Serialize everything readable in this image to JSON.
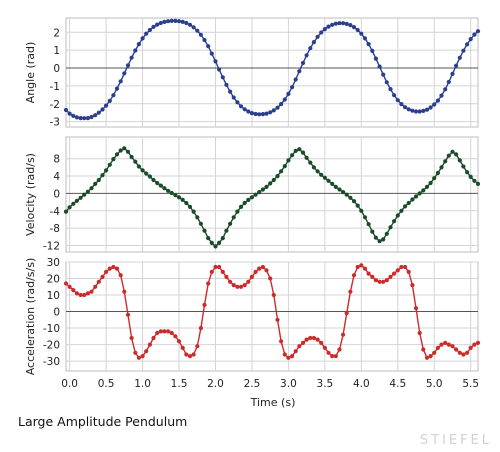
{
  "caption": "Large Amplitude Pendulum",
  "watermark": "STIEFEL",
  "chart_data": {
    "type": "line",
    "title": "",
    "xlabel": "Time (s)",
    "xlim": [
      -0.05,
      5.6
    ],
    "xticks": [
      0.0,
      0.5,
      1.0,
      1.5,
      2.0,
      2.5,
      3.0,
      3.5,
      4.0,
      4.5,
      5.0,
      5.5
    ],
    "grid": true,
    "markers": true,
    "panels": [
      {
        "id": "angle",
        "ylabel": "Angle (rad)",
        "ylim": [
          -3.3,
          2.8
        ],
        "yticks": [
          2,
          1,
          0,
          -1,
          -2,
          -3
        ],
        "color": "#2b3f8f",
        "series": {
          "x": [
            -0.05,
            0.0,
            0.05,
            0.1,
            0.15,
            0.2,
            0.25,
            0.3,
            0.35,
            0.4,
            0.45,
            0.5,
            0.55,
            0.6,
            0.65,
            0.7,
            0.75,
            0.8,
            0.85,
            0.9,
            0.95,
            1.0,
            1.05,
            1.1,
            1.15,
            1.2,
            1.25,
            1.3,
            1.35,
            1.4,
            1.45,
            1.5,
            1.55,
            1.6,
            1.65,
            1.7,
            1.75,
            1.8,
            1.85,
            1.9,
            1.95,
            2.0,
            2.05,
            2.1,
            2.15,
            2.2,
            2.25,
            2.3,
            2.35,
            2.4,
            2.45,
            2.5,
            2.55,
            2.6,
            2.65,
            2.7,
            2.75,
            2.8,
            2.85,
            2.9,
            2.95,
            3.0,
            3.05,
            3.1,
            3.15,
            3.2,
            3.25,
            3.3,
            3.35,
            3.4,
            3.45,
            3.5,
            3.55,
            3.6,
            3.65,
            3.7,
            3.75,
            3.8,
            3.85,
            3.9,
            3.95,
            4.0,
            4.05,
            4.1,
            4.15,
            4.2,
            4.25,
            4.3,
            4.35,
            4.4,
            4.45,
            4.5,
            4.55,
            4.6,
            4.65,
            4.7,
            4.75,
            4.8,
            4.85,
            4.9,
            4.95,
            5.0,
            5.05,
            5.1,
            5.15,
            5.2,
            5.25,
            5.3,
            5.35,
            5.4,
            5.45,
            5.5,
            5.55,
            5.6
          ],
          "y": [
            -2.35,
            -2.55,
            -2.68,
            -2.76,
            -2.8,
            -2.81,
            -2.8,
            -2.74,
            -2.64,
            -2.5,
            -2.32,
            -2.1,
            -1.84,
            -1.52,
            -1.15,
            -0.74,
            -0.3,
            0.15,
            0.58,
            0.98,
            1.34,
            1.66,
            1.92,
            2.13,
            2.3,
            2.43,
            2.52,
            2.58,
            2.62,
            2.64,
            2.64,
            2.62,
            2.58,
            2.52,
            2.42,
            2.28,
            2.09,
            1.86,
            1.57,
            1.22,
            0.81,
            0.37,
            -0.08,
            -0.52,
            -0.94,
            -1.32,
            -1.65,
            -1.92,
            -2.14,
            -2.31,
            -2.43,
            -2.52,
            -2.57,
            -2.59,
            -2.58,
            -2.55,
            -2.48,
            -2.37,
            -2.22,
            -2.02,
            -1.76,
            -1.45,
            -1.07,
            -0.64,
            -0.18,
            0.28,
            0.71,
            1.11,
            1.45,
            1.75,
            1.99,
            2.18,
            2.32,
            2.42,
            2.48,
            2.51,
            2.51,
            2.47,
            2.4,
            2.29,
            2.13,
            1.92,
            1.66,
            1.34,
            0.96,
            0.53,
            0.08,
            -0.37,
            -0.8,
            -1.18,
            -1.52,
            -1.8,
            -2.02,
            -2.19,
            -2.31,
            -2.39,
            -2.43,
            -2.43,
            -2.4,
            -2.33,
            -2.21,
            -2.04,
            -1.82,
            -1.54,
            -1.19,
            -0.78,
            -0.33,
            0.13,
            0.57,
            0.97,
            1.32,
            1.62,
            1.87,
            2.06
          ]
        }
      },
      {
        "id": "velocity",
        "ylabel": "Velocity (rad/s)",
        "ylim": [
          -13.5,
          13
        ],
        "yticks": [
          8,
          4,
          0,
          -4,
          -8,
          -12
        ],
        "color": "#1a4b2a",
        "series": {
          "x": [
            -0.05,
            0.0,
            0.05,
            0.1,
            0.15,
            0.2,
            0.25,
            0.3,
            0.35,
            0.4,
            0.45,
            0.5,
            0.55,
            0.6,
            0.65,
            0.7,
            0.75,
            0.8,
            0.85,
            0.9,
            0.95,
            1.0,
            1.05,
            1.1,
            1.15,
            1.2,
            1.25,
            1.3,
            1.35,
            1.4,
            1.45,
            1.5,
            1.55,
            1.6,
            1.65,
            1.7,
            1.75,
            1.8,
            1.85,
            1.9,
            1.95,
            2.0,
            2.05,
            2.1,
            2.15,
            2.2,
            2.25,
            2.3,
            2.35,
            2.4,
            2.45,
            2.5,
            2.55,
            2.6,
            2.65,
            2.7,
            2.75,
            2.8,
            2.85,
            2.9,
            2.95,
            3.0,
            3.05,
            3.1,
            3.15,
            3.2,
            3.25,
            3.3,
            3.35,
            3.4,
            3.45,
            3.5,
            3.55,
            3.6,
            3.65,
            3.7,
            3.75,
            3.8,
            3.85,
            3.9,
            3.95,
            4.0,
            4.05,
            4.1,
            4.15,
            4.2,
            4.25,
            4.3,
            4.35,
            4.4,
            4.45,
            4.5,
            4.55,
            4.6,
            4.65,
            4.7,
            4.75,
            4.8,
            4.85,
            4.9,
            4.95,
            5.0,
            5.05,
            5.1,
            5.15,
            5.2,
            5.25,
            5.3,
            5.35,
            5.4,
            5.45,
            5.5,
            5.55,
            5.6
          ],
          "y": [
            -4.2,
            -3.2,
            -2.4,
            -1.7,
            -1.0,
            -0.3,
            0.4,
            1.2,
            2.2,
            3.1,
            4.2,
            5.3,
            6.6,
            7.9,
            9.0,
            9.9,
            10.4,
            9.6,
            8.4,
            7.3,
            6.2,
            5.3,
            4.6,
            3.9,
            3.1,
            2.4,
            1.8,
            1.2,
            0.6,
            0.1,
            -0.4,
            -0.9,
            -1.5,
            -2.2,
            -3.1,
            -4.2,
            -5.5,
            -7.0,
            -8.6,
            -10.3,
            -11.4,
            -12.2,
            -11.4,
            -10.3,
            -8.6,
            -7.0,
            -5.5,
            -4.2,
            -3.1,
            -2.2,
            -1.5,
            -0.9,
            -0.3,
            0.3,
            0.9,
            1.5,
            2.3,
            3.1,
            4.0,
            5.1,
            6.3,
            7.6,
            8.8,
            9.8,
            10.2,
            9.4,
            8.2,
            7.1,
            6.0,
            5.1,
            4.3,
            3.6,
            2.9,
            2.2,
            1.5,
            0.9,
            0.3,
            -0.3,
            -1.0,
            -1.8,
            -2.8,
            -4.0,
            -5.5,
            -7.1,
            -8.8,
            -10.2,
            -11.0,
            -10.6,
            -9.3,
            -7.8,
            -6.4,
            -5.1,
            -4.0,
            -3.0,
            -2.2,
            -1.4,
            -0.7,
            0.0,
            0.7,
            1.5,
            2.4,
            3.5,
            4.7,
            6.0,
            7.4,
            8.7,
            9.6,
            9.0,
            7.6,
            6.2,
            4.9,
            3.8,
            2.9,
            2.2
          ]
        }
      },
      {
        "id": "acceleration",
        "ylabel": "Acceleration (rad/s/s)",
        "ylim": [
          -36,
          30
        ],
        "yticks": [
          30,
          20,
          10,
          0,
          -10,
          -20,
          -30
        ],
        "color": "#cc2b2b",
        "series": {
          "x": [
            -0.05,
            0.0,
            0.05,
            0.1,
            0.15,
            0.2,
            0.25,
            0.3,
            0.35,
            0.4,
            0.45,
            0.5,
            0.55,
            0.6,
            0.65,
            0.7,
            0.75,
            0.8,
            0.85,
            0.9,
            0.95,
            1.0,
            1.05,
            1.1,
            1.15,
            1.2,
            1.25,
            1.3,
            1.35,
            1.4,
            1.45,
            1.5,
            1.55,
            1.6,
            1.65,
            1.7,
            1.75,
            1.8,
            1.85,
            1.9,
            1.95,
            2.0,
            2.05,
            2.1,
            2.15,
            2.2,
            2.25,
            2.3,
            2.35,
            2.4,
            2.45,
            2.5,
            2.55,
            2.6,
            2.65,
            2.7,
            2.75,
            2.8,
            2.85,
            2.9,
            2.95,
            3.0,
            3.05,
            3.1,
            3.15,
            3.2,
            3.25,
            3.3,
            3.35,
            3.4,
            3.45,
            3.5,
            3.55,
            3.6,
            3.65,
            3.7,
            3.75,
            3.8,
            3.85,
            3.9,
            3.95,
            4.0,
            4.05,
            4.1,
            4.15,
            4.2,
            4.25,
            4.3,
            4.35,
            4.4,
            4.45,
            4.5,
            4.55,
            4.6,
            4.65,
            4.7,
            4.75,
            4.8,
            4.85,
            4.9,
            4.95,
            5.0,
            5.05,
            5.1,
            5.15,
            5.2,
            5.25,
            5.3,
            5.35,
            5.4,
            5.45,
            5.5,
            5.55,
            5.6
          ],
          "y": [
            17,
            15,
            13,
            11,
            10,
            10,
            11,
            12,
            15,
            18,
            21,
            24,
            26,
            27,
            26,
            22,
            12,
            -2,
            -16,
            -25,
            -28,
            -27,
            -24,
            -20,
            -16,
            -13,
            -12,
            -12,
            -12,
            -13,
            -15,
            -18,
            -22,
            -26,
            -27,
            -26,
            -21,
            -10,
            4,
            17,
            24,
            27,
            27,
            24,
            21,
            18,
            16,
            15,
            15,
            16,
            18,
            21,
            24,
            26,
            27,
            25,
            20,
            10,
            -5,
            -18,
            -26,
            -28,
            -27,
            -24,
            -21,
            -19,
            -17,
            -16,
            -16,
            -17,
            -19,
            -22,
            -25,
            -27,
            -27,
            -23,
            -14,
            -1,
            12,
            22,
            27,
            28,
            26,
            23,
            21,
            19,
            18,
            18,
            19,
            21,
            23,
            25,
            27,
            27,
            24,
            16,
            2,
            -13,
            -23,
            -28,
            -27,
            -25,
            -22,
            -20,
            -19,
            -20,
            -21,
            -23,
            -25,
            -26,
            -25,
            -22,
            -20,
            -19
          ]
        }
      }
    ]
  }
}
